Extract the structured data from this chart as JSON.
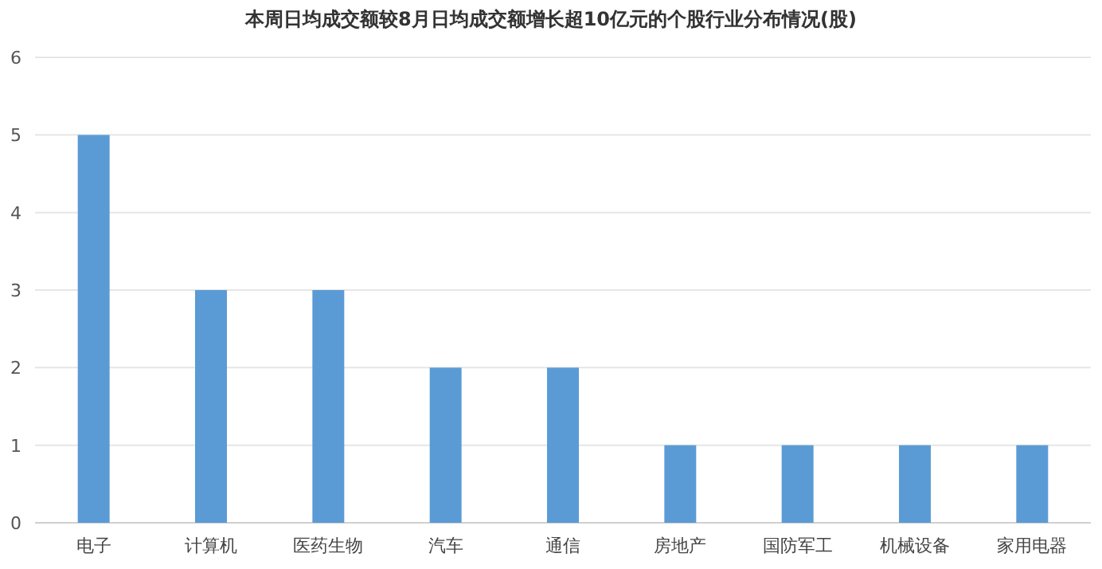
{
  "chart_data": {
    "type": "bar",
    "title": "本周日均成交额较8月日均成交额增长超10亿元的个股行业分布情况(股)",
    "categories": [
      "电子",
      "计算机",
      "医药生物",
      "汽车",
      "通信",
      "房地产",
      "国防军工",
      "机械设备",
      "家用电器"
    ],
    "values": [
      5,
      3,
      3,
      2,
      2,
      1,
      1,
      1,
      1
    ],
    "color": "#5b9bd5",
    "ylim": [
      0,
      6
    ],
    "yticks": [
      0,
      1,
      2,
      3,
      4,
      5,
      6
    ],
    "grid": "y"
  }
}
